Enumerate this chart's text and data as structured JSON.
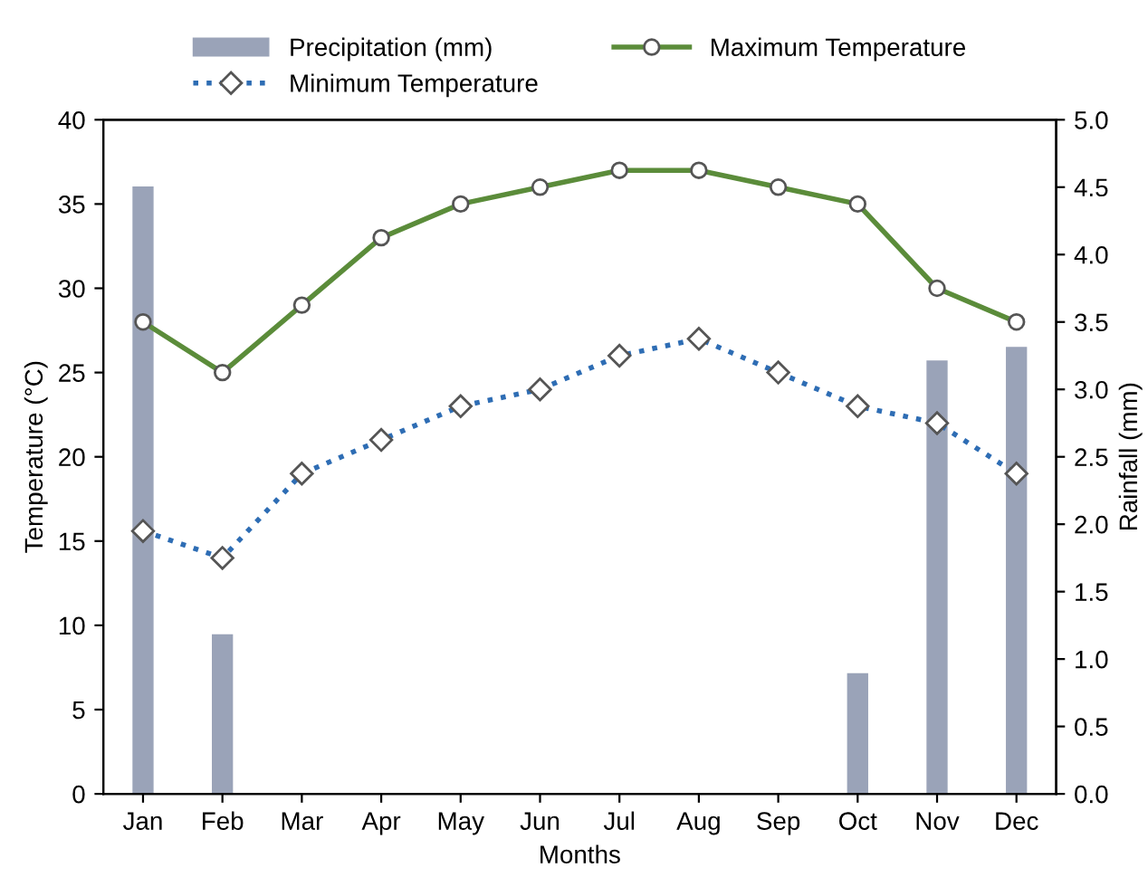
{
  "chart_data": {
    "type": "line",
    "xlabel": "Months",
    "ylabel": "Temperature (°C)",
    "y2label": "Rainfall (mm)",
    "categories": [
      "Jan",
      "Feb",
      "Mar",
      "Apr",
      "May",
      "Jun",
      "Jul",
      "Aug",
      "Sep",
      "Oct",
      "Nov",
      "Dec"
    ],
    "series": [
      {
        "name": "Precipitation (mm)",
        "type": "bar",
        "axis": "y2",
        "color": "#9aa3b8",
        "values": [
          4.5,
          1.18,
          null,
          null,
          null,
          null,
          null,
          null,
          null,
          0.89,
          3.21,
          3.31
        ]
      },
      {
        "name": "Minimum Temperature",
        "color": "#2e6db4",
        "marker": "diamond",
        "line_style": "dotted",
        "values": [
          15.6,
          14,
          19,
          21,
          23,
          24,
          26,
          27,
          25,
          23,
          22,
          19
        ]
      },
      {
        "name": "Maximum Temperature",
        "color": "#5b8c3a",
        "marker": "circle",
        "line_style": "solid",
        "values": [
          28,
          25,
          29,
          33,
          35,
          36,
          37,
          37,
          36,
          35,
          30,
          28
        ]
      }
    ],
    "ylim": [
      0,
      40
    ],
    "yticks": [
      0,
      5,
      10,
      15,
      20,
      25,
      30,
      35,
      40
    ],
    "y2lim": [
      0,
      5
    ],
    "y2ticks": [
      {
        "value": 0,
        "label": "0.0"
      },
      {
        "value": 0.5,
        "label": "0.5"
      },
      {
        "value": 1,
        "label": "1.0"
      },
      {
        "value": 1.5,
        "label": "1.5"
      },
      {
        "value": 2,
        "label": "2.0"
      },
      {
        "value": 2.5,
        "label": "2.5"
      },
      {
        "value": 3,
        "label": "3.0"
      },
      {
        "value": 3.5,
        "label": "3.5"
      },
      {
        "value": 4,
        "label": "4.0"
      },
      {
        "value": 4.5,
        "label": "4.5"
      },
      {
        "value": 5,
        "label": "5.0"
      }
    ],
    "legend": "top",
    "grid": false
  }
}
